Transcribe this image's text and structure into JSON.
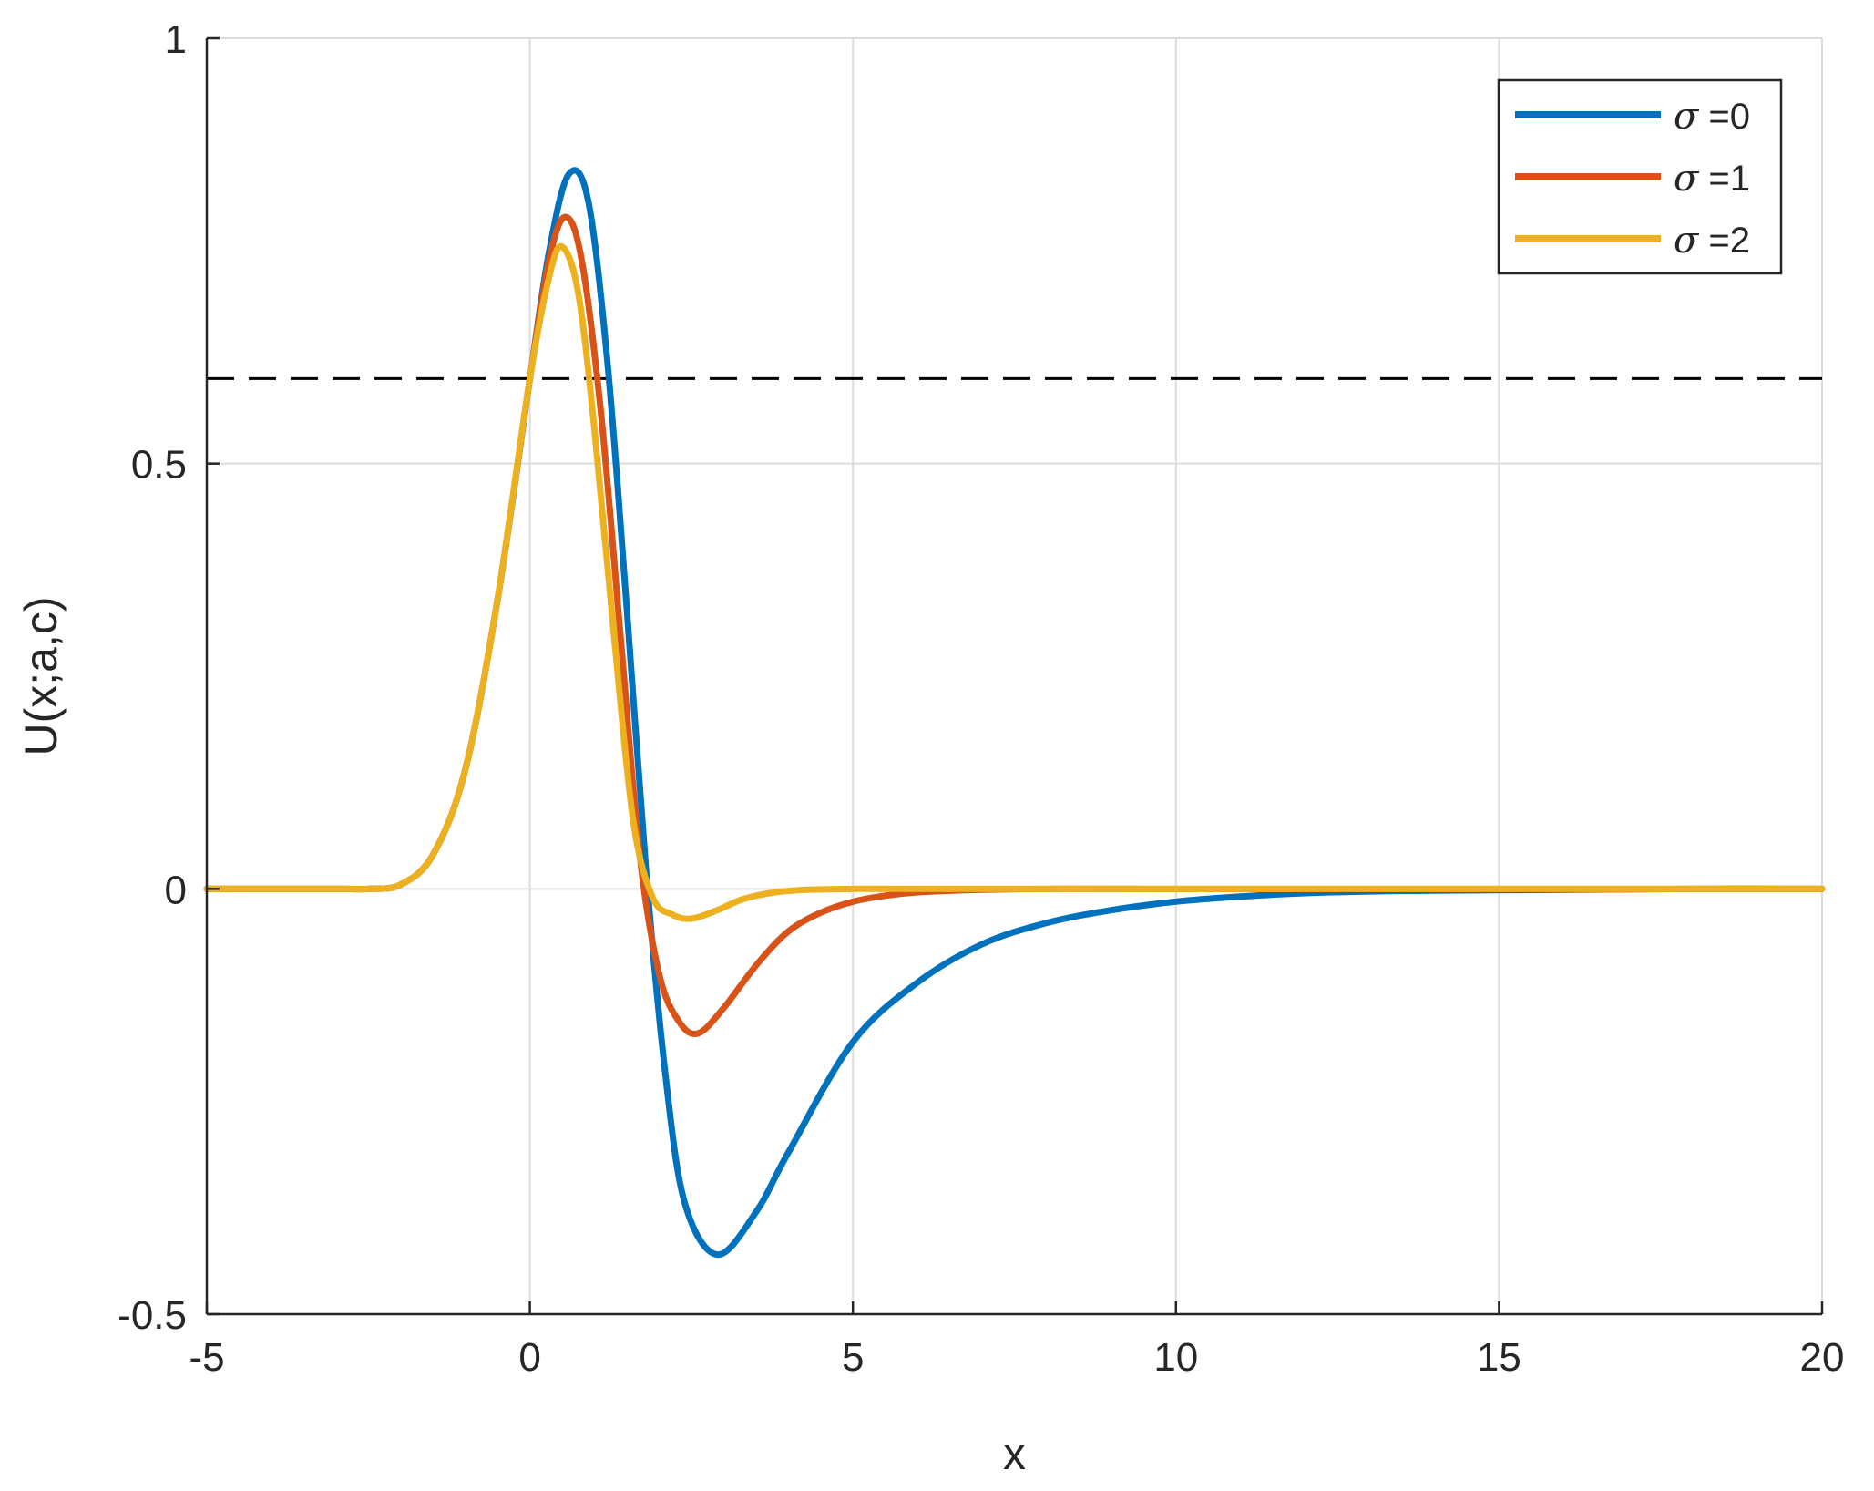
{
  "chart_data": {
    "type": "line",
    "title": "",
    "xlabel": "x",
    "ylabel": "U(x;a,c)",
    "xlim": [
      -5,
      20
    ],
    "ylim": [
      -0.5,
      1
    ],
    "xticks": [
      -5,
      0,
      5,
      10,
      15,
      20
    ],
    "xtick_labels": [
      "-5",
      "0",
      "5",
      "10",
      "15",
      "20"
    ],
    "yticks": [
      -0.5,
      0,
      0.5,
      1
    ],
    "ytick_labels": [
      "-0.5",
      "0",
      "0.5",
      "1"
    ],
    "grid": true,
    "legend_position": "top-right",
    "reference_line": {
      "y": 0.6,
      "style": "dashed",
      "color": "#000000"
    },
    "series": [
      {
        "name": "σ =0",
        "legend_symbol": "σ",
        "legend_value": "=0",
        "color": "#0072BD",
        "x": [
          -5,
          -3,
          -2.5,
          -2,
          -1.5,
          -1,
          -0.5,
          0,
          0.3,
          0.6,
          0.9,
          1.2,
          1.5,
          1.8,
          2.1,
          2.4,
          2.9,
          3.5,
          4,
          5,
          6,
          7,
          8,
          9,
          10,
          11,
          12,
          13,
          14,
          16,
          18,
          20
        ],
        "y": [
          0,
          0,
          0,
          0.005,
          0.04,
          0.14,
          0.34,
          0.6,
          0.75,
          0.84,
          0.81,
          0.62,
          0.33,
          0.02,
          -0.22,
          -0.37,
          -0.43,
          -0.38,
          -0.31,
          -0.18,
          -0.11,
          -0.065,
          -0.04,
          -0.025,
          -0.015,
          -0.009,
          -0.005,
          -0.003,
          -0.002,
          -0.001,
          0,
          0
        ]
      },
      {
        "name": "σ =1",
        "legend_symbol": "σ",
        "legend_value": "=1",
        "color": "#D95319",
        "x": [
          -5,
          -3,
          -2.5,
          -2,
          -1.5,
          -1,
          -0.5,
          0,
          0.3,
          0.55,
          0.8,
          1.1,
          1.4,
          1.7,
          2.0,
          2.3,
          2.6,
          3.0,
          3.5,
          4,
          4.5,
          5,
          5.5,
          6,
          7,
          8,
          10,
          15,
          20
        ],
        "y": [
          0,
          0,
          0,
          0.005,
          0.04,
          0.14,
          0.34,
          0.6,
          0.74,
          0.79,
          0.74,
          0.56,
          0.3,
          0.04,
          -0.1,
          -0.155,
          -0.17,
          -0.14,
          -0.09,
          -0.05,
          -0.028,
          -0.015,
          -0.008,
          -0.004,
          -0.001,
          0,
          0,
          0,
          0
        ]
      },
      {
        "name": "σ =2",
        "legend_symbol": "σ",
        "legend_value": "=2",
        "color": "#EDB120",
        "x": [
          -5,
          -3,
          -2.5,
          -2,
          -1.5,
          -1,
          -0.5,
          0,
          0.3,
          0.5,
          0.75,
          1.0,
          1.3,
          1.6,
          1.9,
          2.2,
          2.5,
          2.9,
          3.3,
          3.8,
          4.3,
          5,
          6,
          8,
          10,
          15,
          20
        ],
        "y": [
          0,
          0,
          0,
          0.005,
          0.04,
          0.14,
          0.34,
          0.6,
          0.72,
          0.755,
          0.7,
          0.54,
          0.3,
          0.08,
          -0.01,
          -0.03,
          -0.035,
          -0.025,
          -0.012,
          -0.004,
          -0.001,
          0,
          0,
          0,
          0,
          0,
          0
        ]
      }
    ]
  }
}
